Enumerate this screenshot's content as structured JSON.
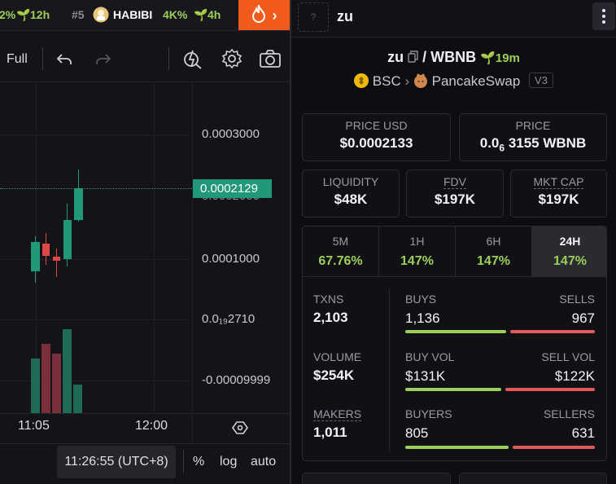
{
  "ticker": [
    {
      "pct": "2%",
      "age": "12h"
    },
    {
      "rank": "#5",
      "name": "HABIBI",
      "pct": "4K%",
      "age": "4h"
    }
  ],
  "chart_toolbar": {
    "interval": "Full"
  },
  "price_axis": [
    "0.0003000",
    "0.0002000",
    "0.0001000",
    "0.0₁₉2710",
    "-0.00009999"
  ],
  "price_tag": "0.0002129",
  "time_axis": [
    "11:05",
    "12:00"
  ],
  "clock": "11:26:55 (UTC+8)",
  "scale_opts": {
    "pct": "%",
    "log": "log",
    "auto": "auto"
  },
  "header": {
    "token_img_placeholder": "?",
    "name": "zu"
  },
  "pair": {
    "base": "zu",
    "quote": "WBNB",
    "age": "19m",
    "chain": "BSC",
    "dex": "PancakeSwap",
    "version": "V3"
  },
  "prices": {
    "usd_label": "PRICE USD",
    "usd": "$0.0002133",
    "native_label": "PRICE",
    "native_lead": "0.0",
    "native_sub": "6",
    "native_rest": "3155 WBNB"
  },
  "metrics": [
    {
      "label": "LIQUIDITY",
      "value": "$48K"
    },
    {
      "label": "FDV",
      "value": "$197K"
    },
    {
      "label": "MKT CAP",
      "value": "$197K"
    }
  ],
  "timeframes": [
    {
      "label": "5M",
      "value": "67.76%"
    },
    {
      "label": "1H",
      "value": "147%"
    },
    {
      "label": "6H",
      "value": "147%"
    },
    {
      "label": "24H",
      "value": "147%",
      "active": true
    }
  ],
  "stats": {
    "txns": {
      "label": "TXNS",
      "value": "2,103"
    },
    "volume": {
      "label": "VOLUME",
      "value": "$254K"
    },
    "makers": {
      "label": "MAKERS",
      "value": "1,011"
    },
    "buys": {
      "label": "BUYS",
      "value": "1,136"
    },
    "sells": {
      "label": "SELLS",
      "value": "967"
    },
    "buy_vol": {
      "label": "BUY VOL",
      "value": "$131K"
    },
    "sell_vol": {
      "label": "SELL VOL",
      "value": "$122K"
    },
    "buyers": {
      "label": "BUYERS",
      "value": "805"
    },
    "sellers": {
      "label": "SELLERS",
      "value": "631"
    }
  },
  "colors": {
    "up": "#21987a",
    "down": "#e04848",
    "accent_green": "#9ccf5a",
    "hot": "#f05a1a",
    "buy_bar": "#9ccf5a",
    "sell_bar": "#e05a5a"
  }
}
